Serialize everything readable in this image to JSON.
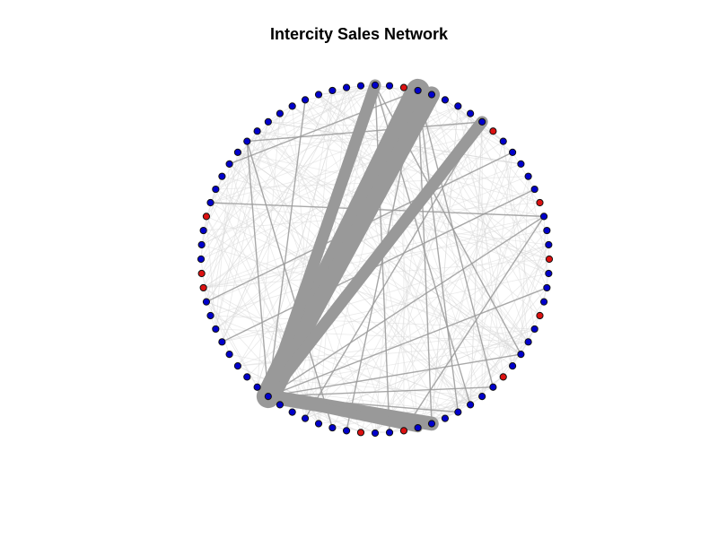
{
  "title": "Intercity Sales Network",
  "colors": {
    "node_primary": "#0000cc",
    "node_highlight": "#dd1111",
    "edge": "#999999",
    "edge_faint": "#d9d9d9"
  },
  "network": {
    "layout": "circle",
    "node_count": 76,
    "highlighted_node_indices": [
      16,
      20,
      21,
      37,
      40,
      48,
      53,
      57,
      61,
      67,
      74
    ],
    "heavy_edges": [
      {
        "from": 30,
        "to": 73,
        "weight": 10
      },
      {
        "from": 30,
        "to": 72,
        "weight": 7
      },
      {
        "from": 30,
        "to": 68,
        "weight": 5
      },
      {
        "from": 30,
        "to": 0,
        "weight": 5
      },
      {
        "from": 30,
        "to": 42,
        "weight": 6
      },
      {
        "from": 30,
        "to": 41,
        "weight": 4
      }
    ],
    "medium_edges": [
      [
        30,
        5
      ],
      [
        30,
        10
      ],
      [
        30,
        60
      ],
      [
        30,
        55
      ],
      [
        30,
        50
      ],
      [
        30,
        47
      ],
      [
        30,
        44
      ],
      [
        0,
        45
      ],
      [
        0,
        39
      ],
      [
        0,
        50
      ],
      [
        73,
        47
      ],
      [
        73,
        44
      ],
      [
        73,
        42
      ],
      [
        73,
        36
      ],
      [
        15,
        60
      ],
      [
        22,
        65
      ],
      [
        25,
        62
      ],
      [
        40,
        60
      ],
      [
        35,
        10
      ],
      [
        33,
        68
      ],
      [
        68,
        10
      ],
      [
        73,
        12
      ]
    ],
    "faint_edge_count": 260
  }
}
